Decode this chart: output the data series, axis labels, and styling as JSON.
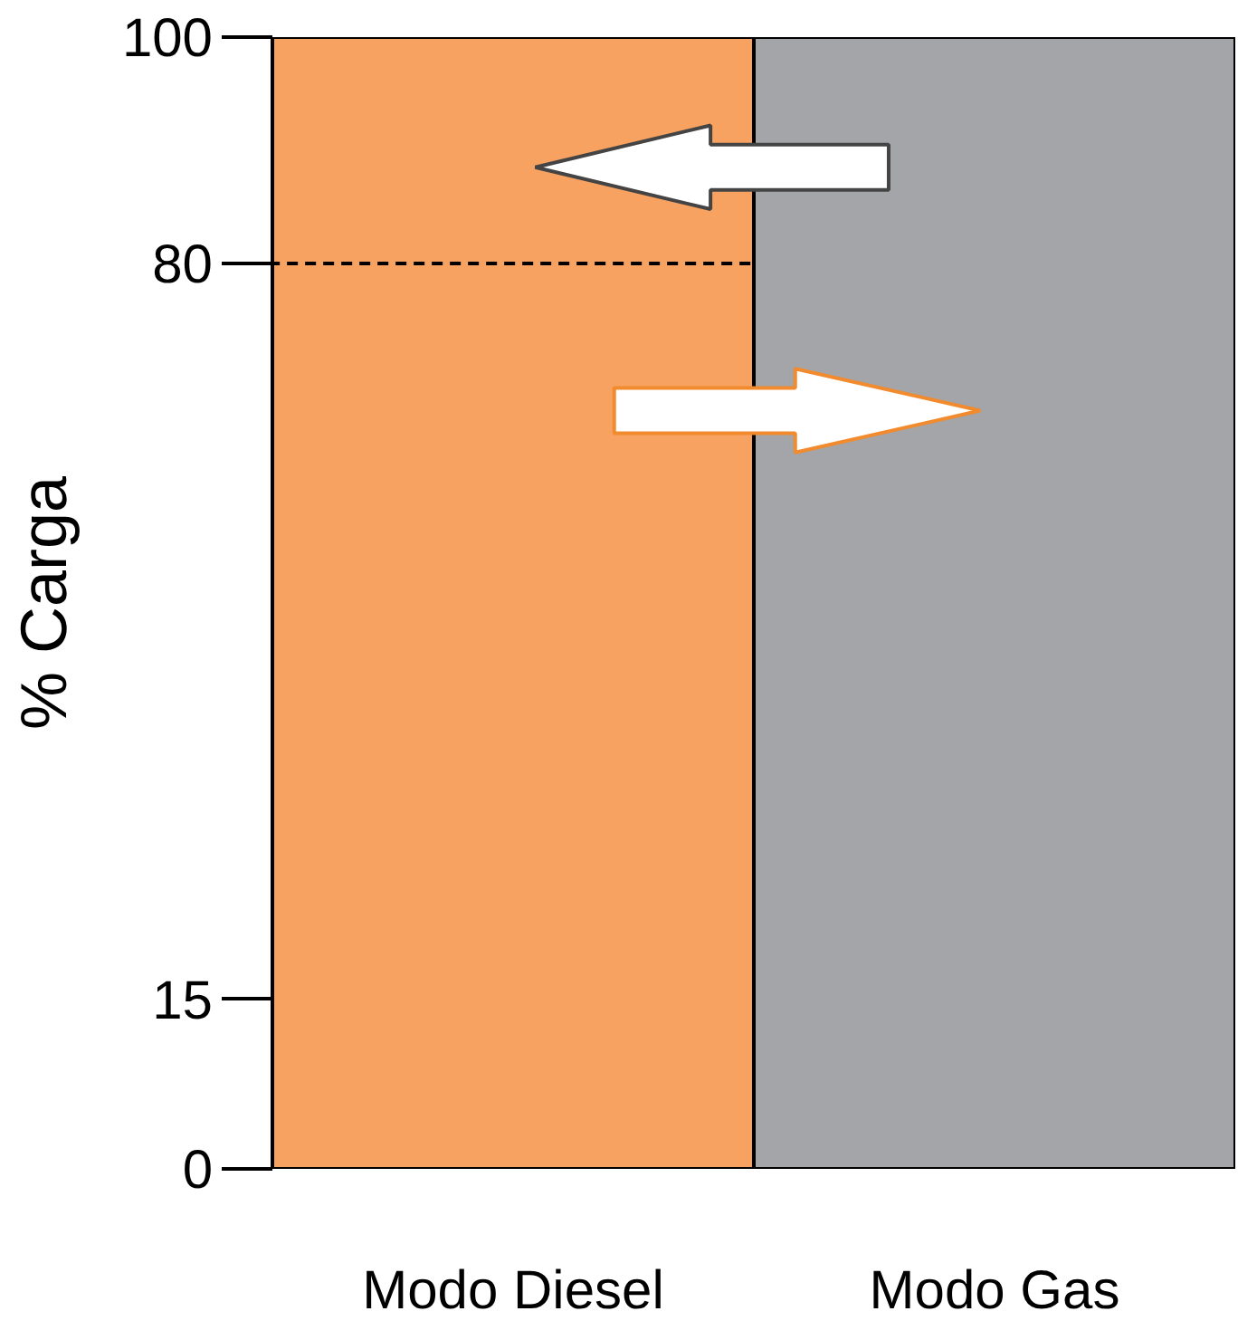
{
  "chart_data": {
    "type": "bar",
    "ylabel": "% Carga",
    "categories": [
      "Modo Diesel",
      "Modo Gas"
    ],
    "values": [
      100,
      100
    ],
    "colors": [
      "#f7a260",
      "#a3a5a9"
    ],
    "ylim": [
      0,
      100
    ],
    "yticks": [
      0,
      15,
      80,
      100
    ],
    "ref_lines": [
      {
        "axis": "y",
        "value": 80,
        "line_style": "dashed",
        "color": "#000000"
      }
    ],
    "line_style": "solid"
  }
}
